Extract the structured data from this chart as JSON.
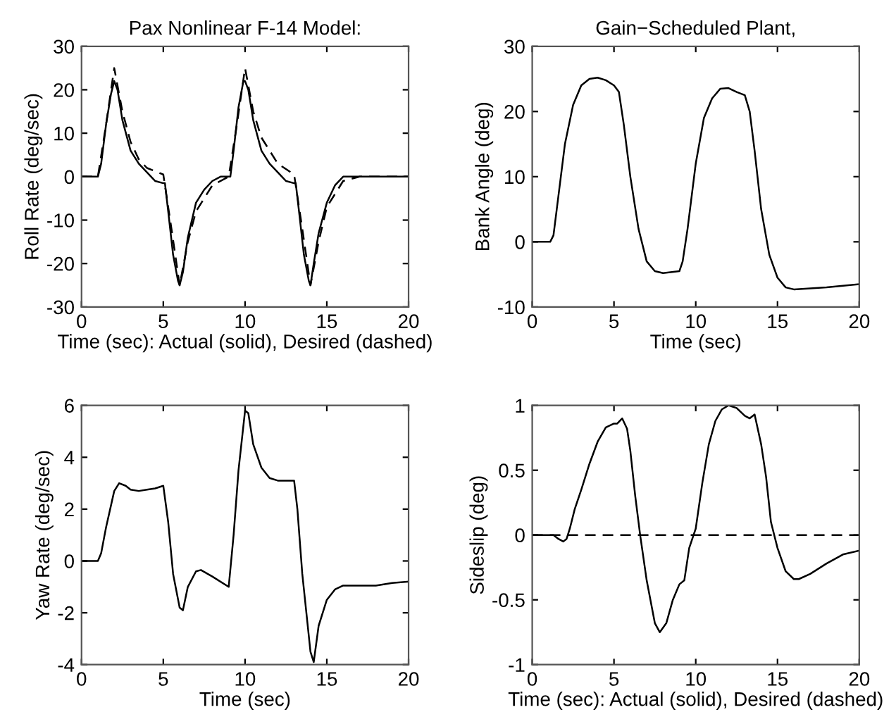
{
  "chart_data": [
    {
      "type": "line",
      "title": "Pax Nonlinear F-14 Model:",
      "xlabel": "Time (sec): Actual (solid), Desired (dashed)",
      "ylabel": "Roll Rate (deg/sec)",
      "xlim": [
        0,
        20
      ],
      "ylim": [
        -30,
        30
      ],
      "xticks": [
        0,
        5,
        10,
        15,
        20
      ],
      "yticks": [
        -30,
        -20,
        -10,
        0,
        10,
        20,
        30
      ],
      "grid": false,
      "series": [
        {
          "color": "#000000",
          "line_style": "solid",
          "x": [
            0,
            1,
            1.2,
            1.5,
            1.8,
            2,
            2.2,
            2.5,
            3,
            3.5,
            4,
            4.5,
            5,
            5.1,
            5.3,
            5.6,
            5.9,
            6,
            6.2,
            6.5,
            7,
            7.5,
            8,
            8.5,
            9,
            9.1,
            9.3,
            9.6,
            9.9,
            10,
            10.2,
            10.5,
            11,
            11.5,
            12,
            12.5,
            13,
            13.1,
            13.3,
            13.6,
            13.9,
            14,
            14.2,
            14.5,
            15,
            15.5,
            16,
            17,
            18,
            20
          ],
          "values": [
            0,
            0,
            3,
            12,
            19,
            22,
            20,
            13,
            6,
            3,
            1,
            -1,
            -1.5,
            -1.5,
            -8,
            -18,
            -24,
            -25,
            -22,
            -14,
            -6,
            -3,
            -1,
            0,
            0,
            0,
            6,
            16,
            22,
            22,
            20,
            13,
            6,
            3,
            1,
            -1,
            -1.5,
            -1.5,
            -8,
            -18,
            -24,
            -25,
            -20,
            -13,
            -6,
            -2,
            0,
            0,
            0,
            0
          ]
        },
        {
          "color": "#000000",
          "line_style": "dashed",
          "x": [
            0,
            1,
            1.5,
            2,
            2.5,
            3,
            3.5,
            4,
            5,
            5.5,
            6,
            6.5,
            7,
            8,
            9,
            9.5,
            10,
            10.5,
            11,
            12,
            13,
            13.5,
            14,
            14.5,
            15,
            16,
            17,
            20
          ],
          "values": [
            0,
            0,
            12,
            25,
            15,
            8,
            4,
            2,
            0.5,
            -12,
            -25,
            -15,
            -8,
            -2,
            0,
            12,
            25,
            15,
            9,
            3,
            0.5,
            -12,
            -25,
            -15,
            -7,
            -1,
            0,
            0
          ]
        }
      ]
    },
    {
      "type": "line",
      "title": "Gain−Scheduled Plant,",
      "xlabel": "Time (sec)",
      "ylabel": "Bank Angle (deg)",
      "xlim": [
        0,
        20
      ],
      "ylim": [
        -10,
        30
      ],
      "xticks": [
        0,
        5,
        10,
        15,
        20
      ],
      "yticks": [
        -10,
        0,
        10,
        20,
        30
      ],
      "grid": false,
      "series": [
        {
          "color": "#000000",
          "line_style": "solid",
          "x": [
            0,
            1.1,
            1.3,
            1.5,
            2,
            2.5,
            3,
            3.5,
            4,
            4.5,
            5,
            5.3,
            5.6,
            6,
            6.5,
            7,
            7.5,
            8,
            9,
            9.2,
            9.5,
            10,
            10.5,
            11,
            11.5,
            12,
            12.5,
            13,
            13.3,
            13.6,
            14,
            14.5,
            15,
            15.5,
            16,
            18,
            20
          ],
          "values": [
            0,
            0,
            1,
            5,
            15,
            21,
            24,
            25,
            25.2,
            24.8,
            24,
            23,
            18,
            10,
            2,
            -3,
            -4.5,
            -4.8,
            -4.5,
            -3,
            2,
            12,
            19,
            22,
            23.5,
            23.6,
            23,
            22.5,
            20,
            14,
            5,
            -2,
            -5.5,
            -7,
            -7.3,
            -7,
            -6.5
          ]
        }
      ]
    },
    {
      "type": "line",
      "xlabel": "Time (sec)",
      "ylabel": "Yaw Rate (deg/sec)",
      "xlim": [
        0,
        20
      ],
      "ylim": [
        -4,
        6
      ],
      "xticks": [
        0,
        5,
        10,
        15,
        20
      ],
      "yticks": [
        -4,
        -2,
        0,
        2,
        4,
        6
      ],
      "grid": false,
      "series": [
        {
          "color": "#000000",
          "line_style": "solid",
          "x": [
            0,
            1,
            1.2,
            1.5,
            2,
            2.3,
            2.7,
            3,
            3.5,
            4,
            4.5,
            5,
            5.3,
            5.6,
            6,
            6.2,
            6.5,
            7,
            7.3,
            8,
            9,
            9.3,
            9.6,
            10,
            10.2,
            10.5,
            11,
            11.5,
            12,
            13,
            13.2,
            13.5,
            14,
            14.2,
            14.5,
            15,
            15.5,
            16,
            17,
            18,
            19,
            20
          ],
          "values": [
            0,
            0,
            0.3,
            1.3,
            2.7,
            3,
            2.9,
            2.75,
            2.7,
            2.75,
            2.8,
            2.9,
            1.5,
            -0.5,
            -1.8,
            -1.9,
            -1,
            -0.4,
            -0.35,
            -0.6,
            -1,
            1,
            3.5,
            5.8,
            5.7,
            4.5,
            3.6,
            3.2,
            3.1,
            3.1,
            2,
            -0.5,
            -3.5,
            -3.9,
            -2.5,
            -1.5,
            -1.1,
            -0.95,
            -0.95,
            -0.95,
            -0.85,
            -0.8
          ]
        }
      ]
    },
    {
      "type": "line",
      "xlabel": "Time (sec): Actual (solid), Desired (dashed)",
      "ylabel": "Sideslip (deg)",
      "xlim": [
        0,
        20
      ],
      "ylim": [
        -1,
        1
      ],
      "xticks": [
        0,
        5,
        10,
        15,
        20
      ],
      "yticks": [
        -1,
        -0.5,
        0,
        0.5,
        1
      ],
      "grid": false,
      "series": [
        {
          "color": "#000000",
          "line_style": "solid",
          "x": [
            0,
            1.3,
            1.6,
            1.9,
            2.1,
            2.3,
            2.6,
            3,
            3.5,
            4,
            4.5,
            5,
            5.2,
            5.5,
            5.8,
            6,
            6.3,
            6.6,
            7,
            7.5,
            7.8,
            8.2,
            8.6,
            9,
            9.3,
            9.6,
            10,
            10.4,
            10.8,
            11.2,
            11.6,
            12,
            12.5,
            13,
            13.3,
            13.6,
            14,
            14.3,
            14.6,
            15,
            15.5,
            16,
            16.3,
            17,
            18,
            19,
            20
          ],
          "values": [
            0,
            0,
            -0.03,
            -0.05,
            -0.03,
            0.05,
            0.2,
            0.35,
            0.55,
            0.72,
            0.83,
            0.86,
            0.86,
            0.9,
            0.82,
            0.65,
            0.3,
            0,
            -0.35,
            -0.68,
            -0.75,
            -0.68,
            -0.5,
            -0.38,
            -0.35,
            -0.1,
            0.05,
            0.4,
            0.7,
            0.88,
            0.97,
            1.0,
            0.98,
            0.92,
            0.9,
            0.93,
            0.7,
            0.45,
            0.1,
            -0.1,
            -0.28,
            -0.34,
            -0.34,
            -0.3,
            -0.22,
            -0.15,
            -0.12
          ]
        },
        {
          "color": "#000000",
          "line_style": "dashed",
          "x": [
            0,
            20
          ],
          "values": [
            0,
            0
          ]
        }
      ]
    }
  ]
}
